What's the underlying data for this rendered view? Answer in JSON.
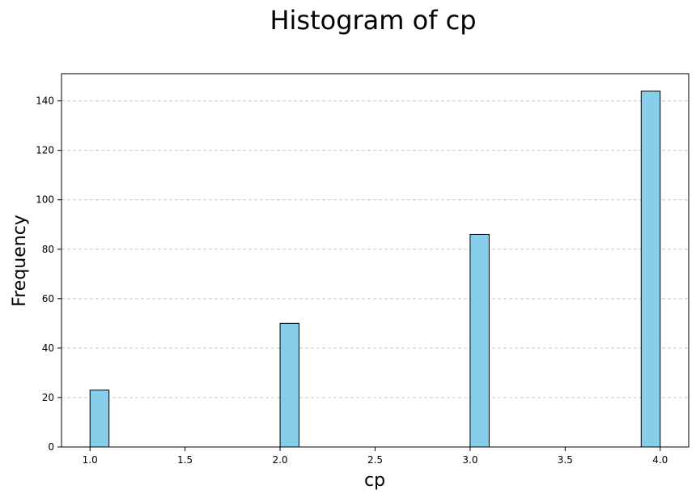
{
  "chart_data": {
    "type": "bar",
    "title": "Histogram of cp",
    "xlabel": "cp",
    "ylabel": "Frequency",
    "bins": [
      {
        "x0": 1.0,
        "x1": 1.1,
        "value": 23
      },
      {
        "x0": 2.0,
        "x1": 2.1,
        "value": 50
      },
      {
        "x0": 3.0,
        "x1": 3.1,
        "value": 86
      },
      {
        "x0": 3.9,
        "x1": 4.0,
        "value": 144
      }
    ],
    "xlim": [
      0.85,
      4.15
    ],
    "ylim": [
      0,
      151
    ],
    "xticks": [
      1.0,
      1.5,
      2.0,
      2.5,
      3.0,
      3.5,
      4.0
    ],
    "xtick_labels": [
      "1.0",
      "1.5",
      "2.0",
      "2.5",
      "3.0",
      "3.5",
      "4.0"
    ],
    "yticks": [
      0,
      20,
      40,
      60,
      80,
      100,
      120,
      140
    ],
    "ytick_labels": [
      "0",
      "20",
      "40",
      "60",
      "80",
      "100",
      "120",
      "140"
    ],
    "grid": "y-dashed",
    "bar_color": "#87CEEB",
    "edge_color": "#000000",
    "grid_color": "#c8c8c8"
  }
}
